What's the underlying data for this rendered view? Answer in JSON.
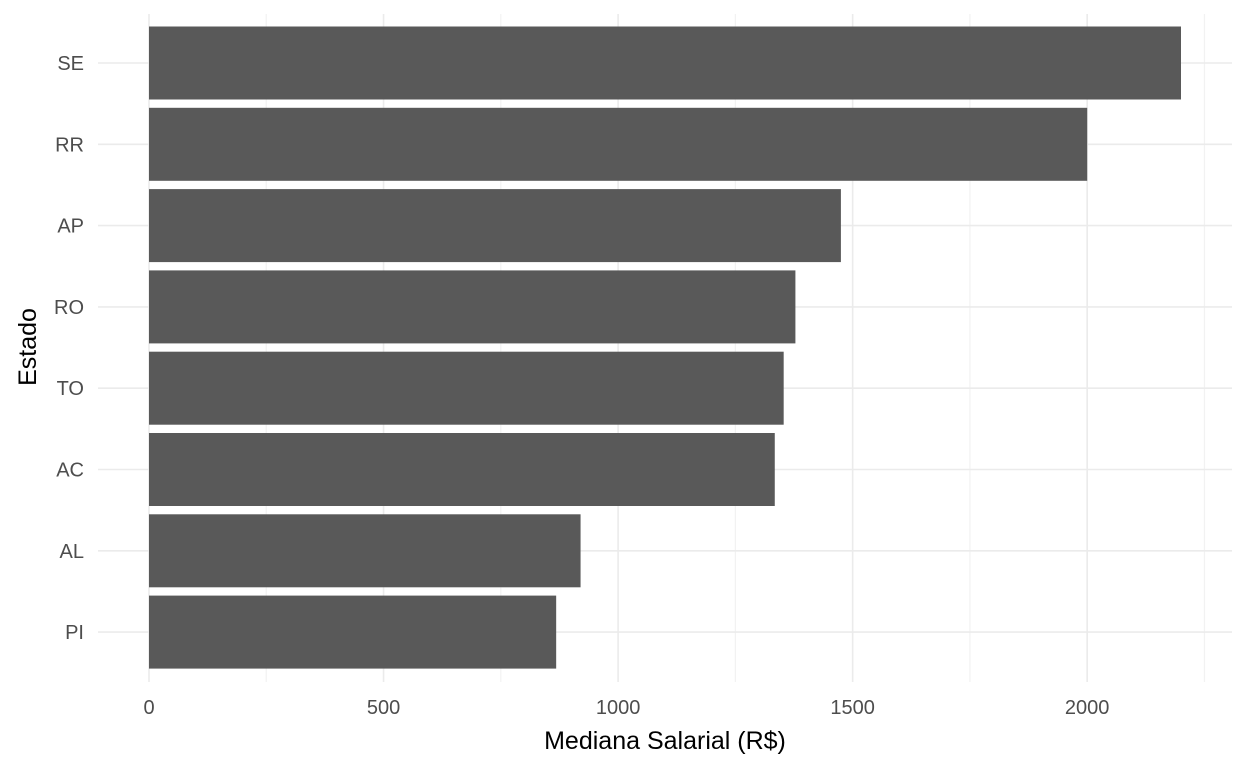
{
  "chart_data": {
    "type": "bar",
    "orientation": "horizontal",
    "categories": [
      "SE",
      "RR",
      "AP",
      "RO",
      "TO",
      "AC",
      "AL",
      "PI"
    ],
    "values": [
      2200,
      2000,
      1475,
      1378,
      1353,
      1334,
      920,
      868
    ],
    "xlabel": "Mediana Salarial (R$)",
    "ylabel": "Estado",
    "xlim": [
      0,
      2200
    ],
    "x_ticks": [
      0,
      500,
      1000,
      1500,
      2000
    ],
    "x_tick_labels": [
      "0",
      "500",
      "1000",
      "1500",
      "2000"
    ],
    "grid": true,
    "legend": "none",
    "colors": {
      "bar": "#595959",
      "grid_major": "#ebebeb",
      "grid_minor": "#f2f2f2",
      "tick_text": "#4d4d4d",
      "title_text": "#000000",
      "background": "#ffffff"
    }
  }
}
